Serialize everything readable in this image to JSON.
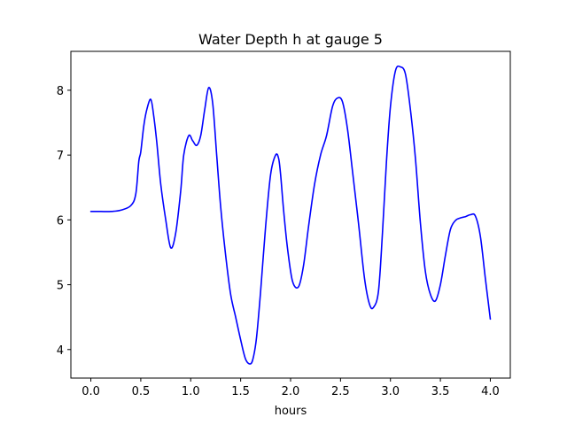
{
  "chart_data": {
    "type": "line",
    "title": "Water Depth h at gauge 5",
    "xlabel": "hours",
    "ylabel": "",
    "xlim": [
      -0.2,
      4.2
    ],
    "ylim": [
      3.56,
      8.6
    ],
    "xticks": [
      0.0,
      0.5,
      1.0,
      1.5,
      2.0,
      2.5,
      3.0,
      3.5,
      4.0
    ],
    "xtick_labels": [
      "0.0",
      "0.5",
      "1.0",
      "1.5",
      "2.0",
      "2.5",
      "3.0",
      "3.5",
      "4.0"
    ],
    "yticks": [
      4,
      5,
      6,
      7,
      8
    ],
    "ytick_labels": [
      "4",
      "5",
      "6",
      "7",
      "8"
    ],
    "grid": false,
    "series": [
      {
        "color": "#0000ff",
        "x": [
          0.0,
          0.1,
          0.2,
          0.3,
          0.4,
          0.45,
          0.48,
          0.5,
          0.53,
          0.56,
          0.6,
          0.63,
          0.66,
          0.7,
          0.75,
          0.8,
          0.85,
          0.9,
          0.93,
          0.98,
          1.02,
          1.06,
          1.1,
          1.14,
          1.18,
          1.22,
          1.26,
          1.3,
          1.35,
          1.4,
          1.45,
          1.5,
          1.55,
          1.6,
          1.63,
          1.66,
          1.7,
          1.75,
          1.8,
          1.85,
          1.88,
          1.9,
          1.93,
          1.97,
          2.02,
          2.08,
          2.13,
          2.18,
          2.24,
          2.3,
          2.36,
          2.42,
          2.47,
          2.52,
          2.57,
          2.62,
          2.68,
          2.74,
          2.79,
          2.83,
          2.88,
          2.92,
          2.96,
          3.0,
          3.05,
          3.1,
          3.15,
          3.2,
          3.25,
          3.3,
          3.35,
          3.4,
          3.45,
          3.5,
          3.55,
          3.6,
          3.65,
          3.7,
          3.75,
          3.8,
          3.85,
          3.9,
          3.95,
          4.0
        ],
        "y": [
          6.13,
          6.13,
          6.13,
          6.15,
          6.22,
          6.4,
          6.9,
          7.05,
          7.45,
          7.7,
          7.86,
          7.6,
          7.2,
          6.55,
          6.0,
          5.57,
          5.8,
          6.45,
          7.0,
          7.3,
          7.22,
          7.15,
          7.3,
          7.7,
          8.04,
          7.8,
          7.0,
          6.2,
          5.45,
          4.85,
          4.5,
          4.15,
          3.85,
          3.78,
          3.9,
          4.2,
          4.9,
          5.9,
          6.7,
          7.0,
          6.95,
          6.7,
          6.15,
          5.55,
          5.05,
          4.97,
          5.3,
          5.9,
          6.55,
          7.0,
          7.3,
          7.75,
          7.88,
          7.82,
          7.4,
          6.75,
          5.95,
          5.1,
          4.7,
          4.65,
          4.9,
          5.8,
          6.9,
          7.75,
          8.3,
          8.36,
          8.25,
          7.7,
          6.95,
          5.95,
          5.2,
          4.85,
          4.75,
          5.0,
          5.45,
          5.85,
          5.99,
          6.03,
          6.05,
          6.08,
          6.06,
          5.75,
          5.1,
          4.47
        ]
      }
    ]
  }
}
